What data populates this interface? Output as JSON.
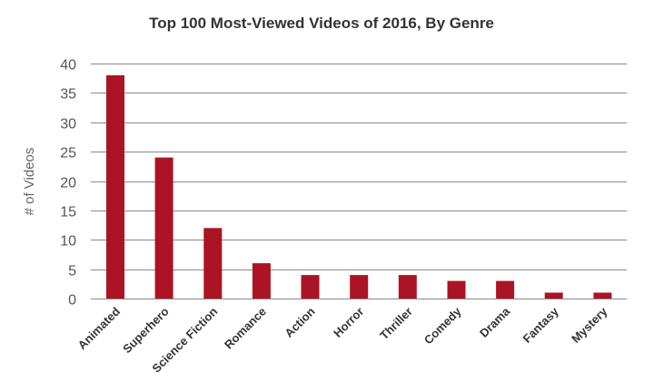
{
  "chart_data": {
    "type": "bar",
    "title": "Top 100 Most-Viewed Videos of 2016, By Genre",
    "xlabel": "",
    "ylabel": "# of Videos",
    "categories": [
      "Animated",
      "Superhero",
      "Science Fiction",
      "Romance",
      "Action",
      "Horror",
      "Thriller",
      "Comedy",
      "Drama",
      "Fantasy",
      "Mystery"
    ],
    "values": [
      38,
      24,
      12,
      6,
      4,
      4,
      4,
      3,
      3,
      1,
      1
    ],
    "ylim": [
      0,
      40
    ],
    "yticks": [
      0,
      5,
      10,
      15,
      20,
      25,
      30,
      35,
      40
    ],
    "grid": true,
    "legend": "none",
    "bar_color": "#ac1324"
  }
}
